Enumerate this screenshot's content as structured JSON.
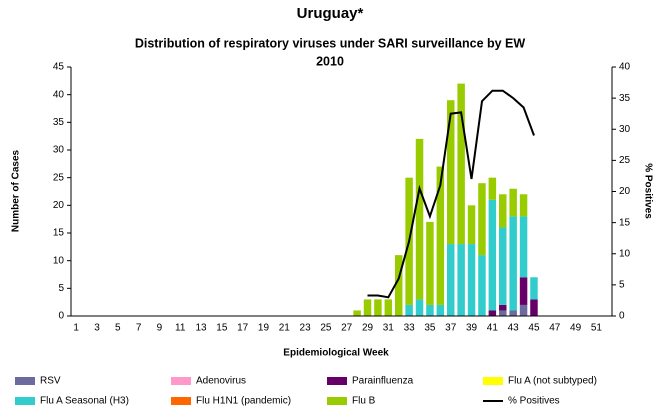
{
  "chart_data": {
    "type": "bar",
    "title": "Uruguay*",
    "subtitle": "Distribution of respiratory viruses under SARI surveillance by EW",
    "subtitle2": "2010",
    "xlabel": "Epidemiological Week",
    "ylabel": "Number of Cases",
    "y2label": "% Positives",
    "stacked": true,
    "categories": [
      1,
      null,
      3,
      null,
      5,
      null,
      7,
      null,
      9,
      null,
      11,
      null,
      13,
      null,
      15,
      null,
      17,
      null,
      19,
      null,
      21,
      null,
      23,
      null,
      25,
      null,
      27,
      null,
      29,
      null,
      31,
      null,
      33,
      null,
      35,
      null,
      37,
      null,
      39,
      null,
      41,
      null,
      43,
      null,
      45,
      null,
      47,
      null,
      49,
      null,
      51,
      null
    ],
    "ylim": [
      0,
      45
    ],
    "yticks": [
      0,
      5,
      10,
      15,
      20,
      25,
      30,
      35,
      40,
      45
    ],
    "y2lim": [
      0,
      40
    ],
    "y2ticks": [
      0,
      5,
      10,
      15,
      20,
      25,
      30,
      35,
      40
    ],
    "series": [
      {
        "name": "RSV",
        "color": "#6b6b9e",
        "values": [
          0,
          0,
          0,
          0,
          0,
          0,
          0,
          0,
          0,
          0,
          0,
          0,
          0,
          0,
          0,
          0,
          0,
          0,
          0,
          0,
          0,
          0,
          0,
          0,
          0,
          0,
          0,
          0,
          0,
          0,
          0,
          0,
          0,
          0,
          0,
          0,
          0,
          0,
          0,
          0,
          0,
          1,
          1,
          2,
          0,
          0,
          0,
          0,
          0,
          0,
          0,
          0
        ]
      },
      {
        "name": "Adenovirus",
        "color": "#ff99cc",
        "values": [
          0,
          0,
          0,
          0,
          0,
          0,
          0,
          0,
          0,
          0,
          0,
          0,
          0,
          0,
          0,
          0,
          0,
          0,
          0,
          0,
          0,
          0,
          0,
          0,
          0,
          0,
          0,
          0,
          0,
          0,
          0,
          0,
          0,
          0,
          0,
          0,
          0,
          0,
          0,
          0,
          0,
          0,
          0,
          0,
          0,
          0,
          0,
          0,
          0,
          0,
          0,
          0
        ]
      },
      {
        "name": "Parainfluenza",
        "color": "#660066",
        "values": [
          0,
          0,
          0,
          0,
          0,
          0,
          0,
          0,
          0,
          0,
          0,
          0,
          0,
          0,
          0,
          0,
          0,
          0,
          0,
          0,
          0,
          0,
          0,
          0,
          0,
          0,
          0,
          0,
          0,
          0,
          0,
          0,
          0,
          0,
          0,
          0,
          0,
          0,
          0,
          0,
          1,
          1,
          0,
          5,
          3,
          0,
          0,
          0,
          0,
          0,
          0,
          0
        ]
      },
      {
        "name": "Flu A (not subtyped)",
        "color": "#ffff00",
        "values": [
          0,
          0,
          0,
          0,
          0,
          0,
          0,
          0,
          0,
          0,
          0,
          0,
          0,
          0,
          0,
          0,
          0,
          0,
          0,
          0,
          0,
          0,
          0,
          0,
          0,
          0,
          0,
          0,
          0,
          0,
          0,
          0,
          0,
          0,
          0,
          0,
          0,
          0,
          0,
          0,
          0,
          0,
          0,
          0,
          0,
          0,
          0,
          0,
          0,
          0,
          0,
          0
        ]
      },
      {
        "name": "Flu A Seasonal (H3)",
        "color": "#33cccc",
        "values": [
          0,
          0,
          0,
          0,
          0,
          0,
          0,
          0,
          0,
          0,
          0,
          0,
          0,
          0,
          0,
          0,
          0,
          0,
          0,
          0,
          0,
          0,
          0,
          0,
          0,
          0,
          0,
          0,
          0,
          0,
          0,
          0,
          2,
          3,
          2,
          2,
          13,
          13,
          13,
          11,
          20,
          14,
          17,
          11,
          4,
          0,
          0,
          0,
          0,
          0,
          0,
          0
        ]
      },
      {
        "name": "Flu H1N1 (pandemic)",
        "color": "#ff6600",
        "values": [
          0,
          0,
          0,
          0,
          0,
          0,
          0,
          0,
          0,
          0,
          0,
          0,
          0,
          0,
          0,
          0,
          0,
          0,
          0,
          0,
          0,
          0,
          0,
          0,
          0,
          0,
          0,
          0,
          0,
          0,
          0,
          0,
          0,
          0,
          0,
          0,
          0,
          0,
          0,
          0,
          0,
          0,
          0,
          0,
          0,
          0,
          0,
          0,
          0,
          0,
          0,
          0
        ]
      },
      {
        "name": "Flu B",
        "color": "#99cc00",
        "values": [
          0,
          0,
          0,
          0,
          0,
          0,
          0,
          0,
          0,
          0,
          0,
          0,
          0,
          0,
          0,
          0,
          0,
          0,
          0,
          0,
          0,
          0,
          0,
          0,
          0,
          0,
          0,
          1,
          3,
          3,
          3,
          11,
          23,
          29,
          15,
          25,
          26,
          29,
          7,
          13,
          4,
          6,
          5,
          4,
          0,
          0,
          0,
          0,
          0,
          0,
          0,
          0
        ]
      },
      {
        "name": "% Positives",
        "color": "#000000",
        "axis": "y2",
        "type": "line",
        "values": [
          null,
          null,
          null,
          null,
          null,
          null,
          null,
          null,
          null,
          null,
          null,
          null,
          null,
          null,
          null,
          null,
          null,
          null,
          null,
          null,
          null,
          null,
          null,
          null,
          null,
          null,
          null,
          null,
          3.3,
          3.3,
          3.0,
          6,
          12,
          20.5,
          16,
          21,
          32.5,
          32.7,
          22,
          34.5,
          36.2,
          36.2,
          35,
          33.5,
          29,
          null,
          null,
          null,
          null,
          null,
          null,
          null
        ]
      }
    ]
  }
}
